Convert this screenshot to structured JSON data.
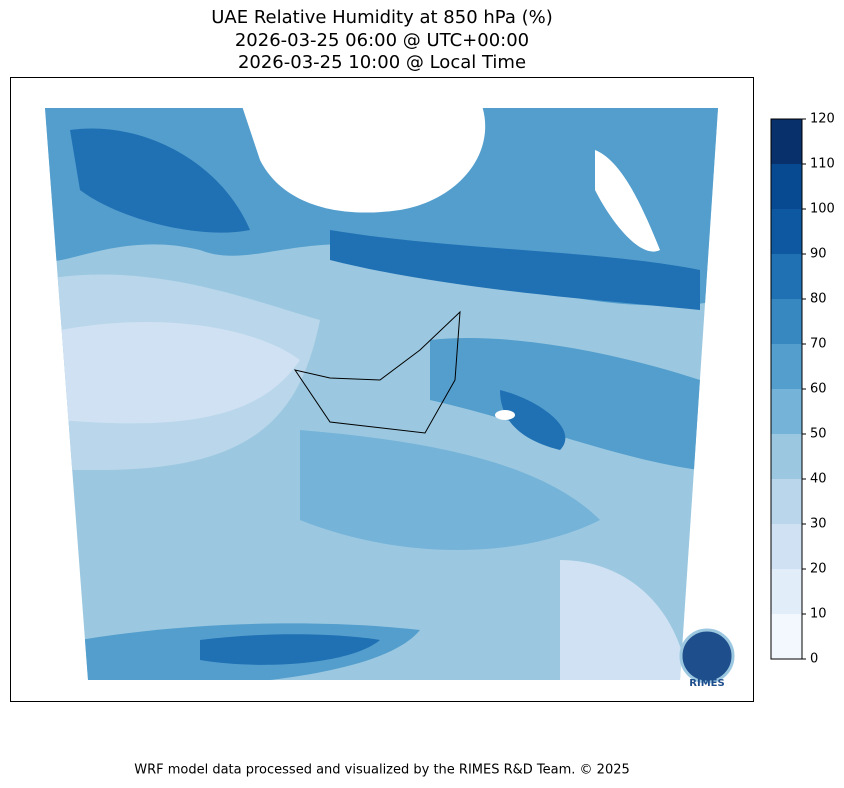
{
  "title": [
    "UAE Relative Humidity at 850 hPa (%)",
    "2026-03-25 06:00 @ UTC+00:00",
    "2026-03-25 10:00 @ Local Time"
  ],
  "colorbar": {
    "lim": [
      0,
      120
    ],
    "ticks": [
      0,
      10,
      20,
      30,
      40,
      50,
      60,
      70,
      80,
      90,
      100,
      110,
      120
    ],
    "colors": [
      "#f3f8fe",
      "#e1edf8",
      "#cfe1f2",
      "#b9d6ea",
      "#9bc8e0",
      "#75b3d8",
      "#539ecd",
      "#3787c0",
      "#2070b4",
      "#0d58a1",
      "#084a91",
      "#08306b"
    ]
  },
  "logo": "RIMES",
  "footer": "WRF model data processed and visualized by the RIMES R&D Team. © 2025"
}
